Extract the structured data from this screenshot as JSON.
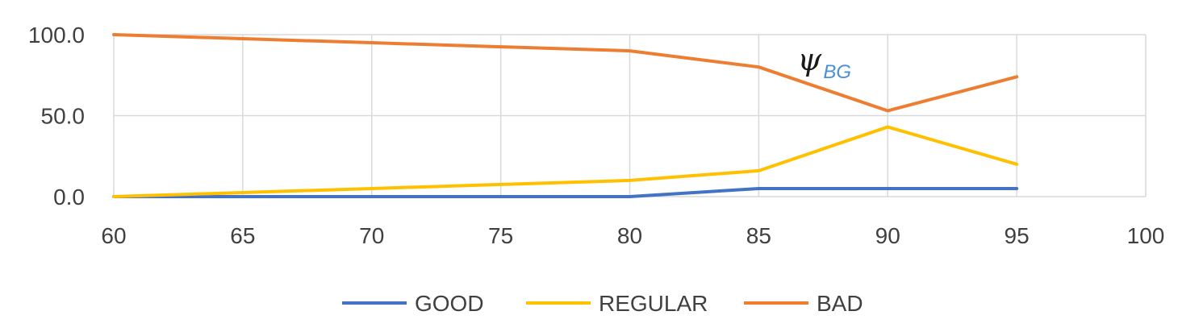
{
  "chart_data": {
    "type": "line",
    "x": [
      60,
      65,
      70,
      75,
      80,
      85,
      90,
      95
    ],
    "xlim": [
      60,
      100
    ],
    "xticks": [
      "60",
      "65",
      "70",
      "75",
      "80",
      "85",
      "90",
      "95",
      "100"
    ],
    "ylim": [
      0,
      100
    ],
    "yticks": [
      "0.0",
      "50.0",
      "100.0"
    ],
    "grid": true,
    "legend_position": "bottom",
    "series": [
      {
        "name": "GOOD",
        "color": "#4472C4",
        "values": [
          0,
          0,
          0,
          0,
          0,
          5,
          5,
          5
        ]
      },
      {
        "name": "REGULAR",
        "color": "#FFC000",
        "values": [
          0,
          2.5,
          5,
          7.5,
          10,
          16,
          43,
          20
        ]
      },
      {
        "name": "BAD",
        "color": "#ED7D31",
        "values": [
          100,
          97.5,
          95,
          92.5,
          90,
          80,
          53,
          74
        ]
      }
    ],
    "annotation": {
      "symbol": "ψ",
      "subscript": "BG",
      "x": 86.5,
      "y": 78
    }
  }
}
